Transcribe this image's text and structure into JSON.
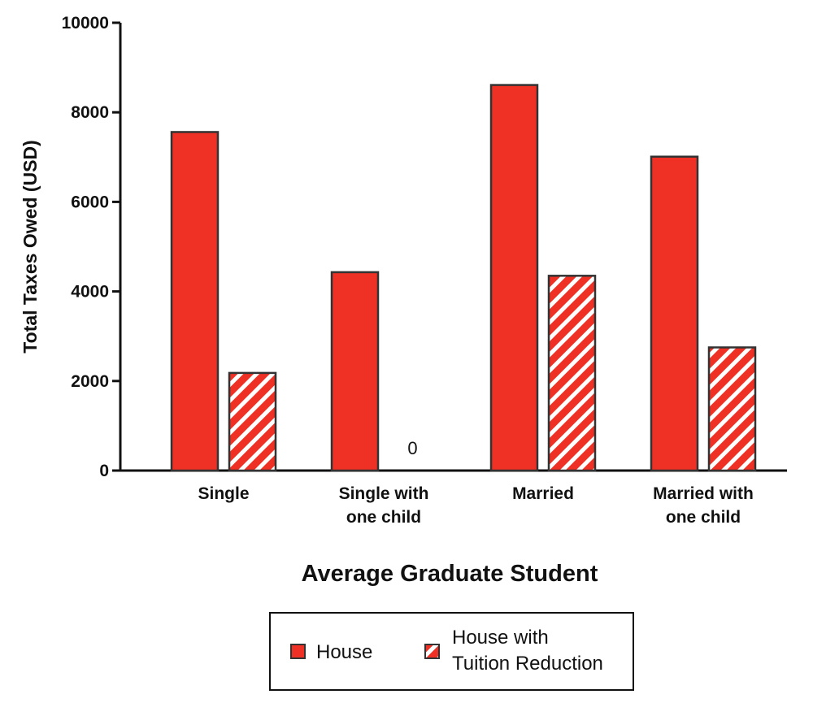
{
  "chart_data": {
    "type": "bar",
    "title": "",
    "xlabel": "Average Graduate Student",
    "ylabel": "Total Taxes Owed  (USD)",
    "ylim": [
      0,
      10000
    ],
    "yticks": [
      0,
      2000,
      4000,
      6000,
      8000,
      10000
    ],
    "categories": [
      [
        "Single"
      ],
      [
        "Single with",
        "one child"
      ],
      [
        "Married"
      ],
      [
        "Married with",
        "one child"
      ]
    ],
    "series": [
      {
        "name": "House",
        "values": [
          7560,
          4430,
          8610,
          7010
        ],
        "color": "#ee3124",
        "pattern": "solid"
      },
      {
        "name_lines": [
          "House with",
          "Tuition Reduction"
        ],
        "values": [
          2180,
          0,
          4350,
          2750
        ],
        "color": "#ee3124",
        "pattern": "hatch"
      }
    ],
    "data_labels": [
      {
        "series": 1,
        "category": 1,
        "text": "0"
      }
    ],
    "grid": false,
    "legend_position": "bottom"
  }
}
